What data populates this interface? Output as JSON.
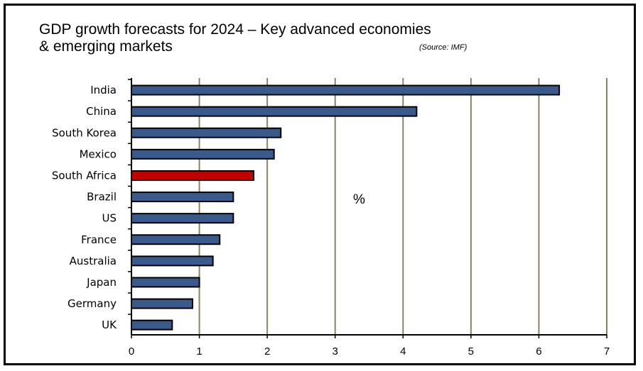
{
  "chart_data": {
    "type": "bar",
    "orientation": "horizontal",
    "title": "GDP growth forecasts for 2024 – Key advanced economies\n& emerging markets",
    "source": "(Source: IMF)",
    "unit_annotation": "%",
    "categories": [
      "India",
      "China",
      "South Korea",
      "Mexico",
      "South Africa",
      "Brazil",
      "US",
      "France",
      "Australia",
      "Japan",
      "Germany",
      "UK"
    ],
    "values": [
      6.3,
      4.2,
      2.2,
      2.1,
      1.8,
      1.5,
      1.5,
      1.3,
      1.2,
      1.0,
      0.9,
      0.6
    ],
    "highlight": "South Africa",
    "xlim": [
      0,
      7
    ],
    "xticks": [
      0,
      1,
      2,
      3,
      4,
      5,
      6,
      7
    ],
    "grid": "vertical",
    "colors": {
      "bar": "#3b5a8c",
      "highlight": "#c00000",
      "grid": "#8a8560",
      "border": "#000000"
    }
  }
}
